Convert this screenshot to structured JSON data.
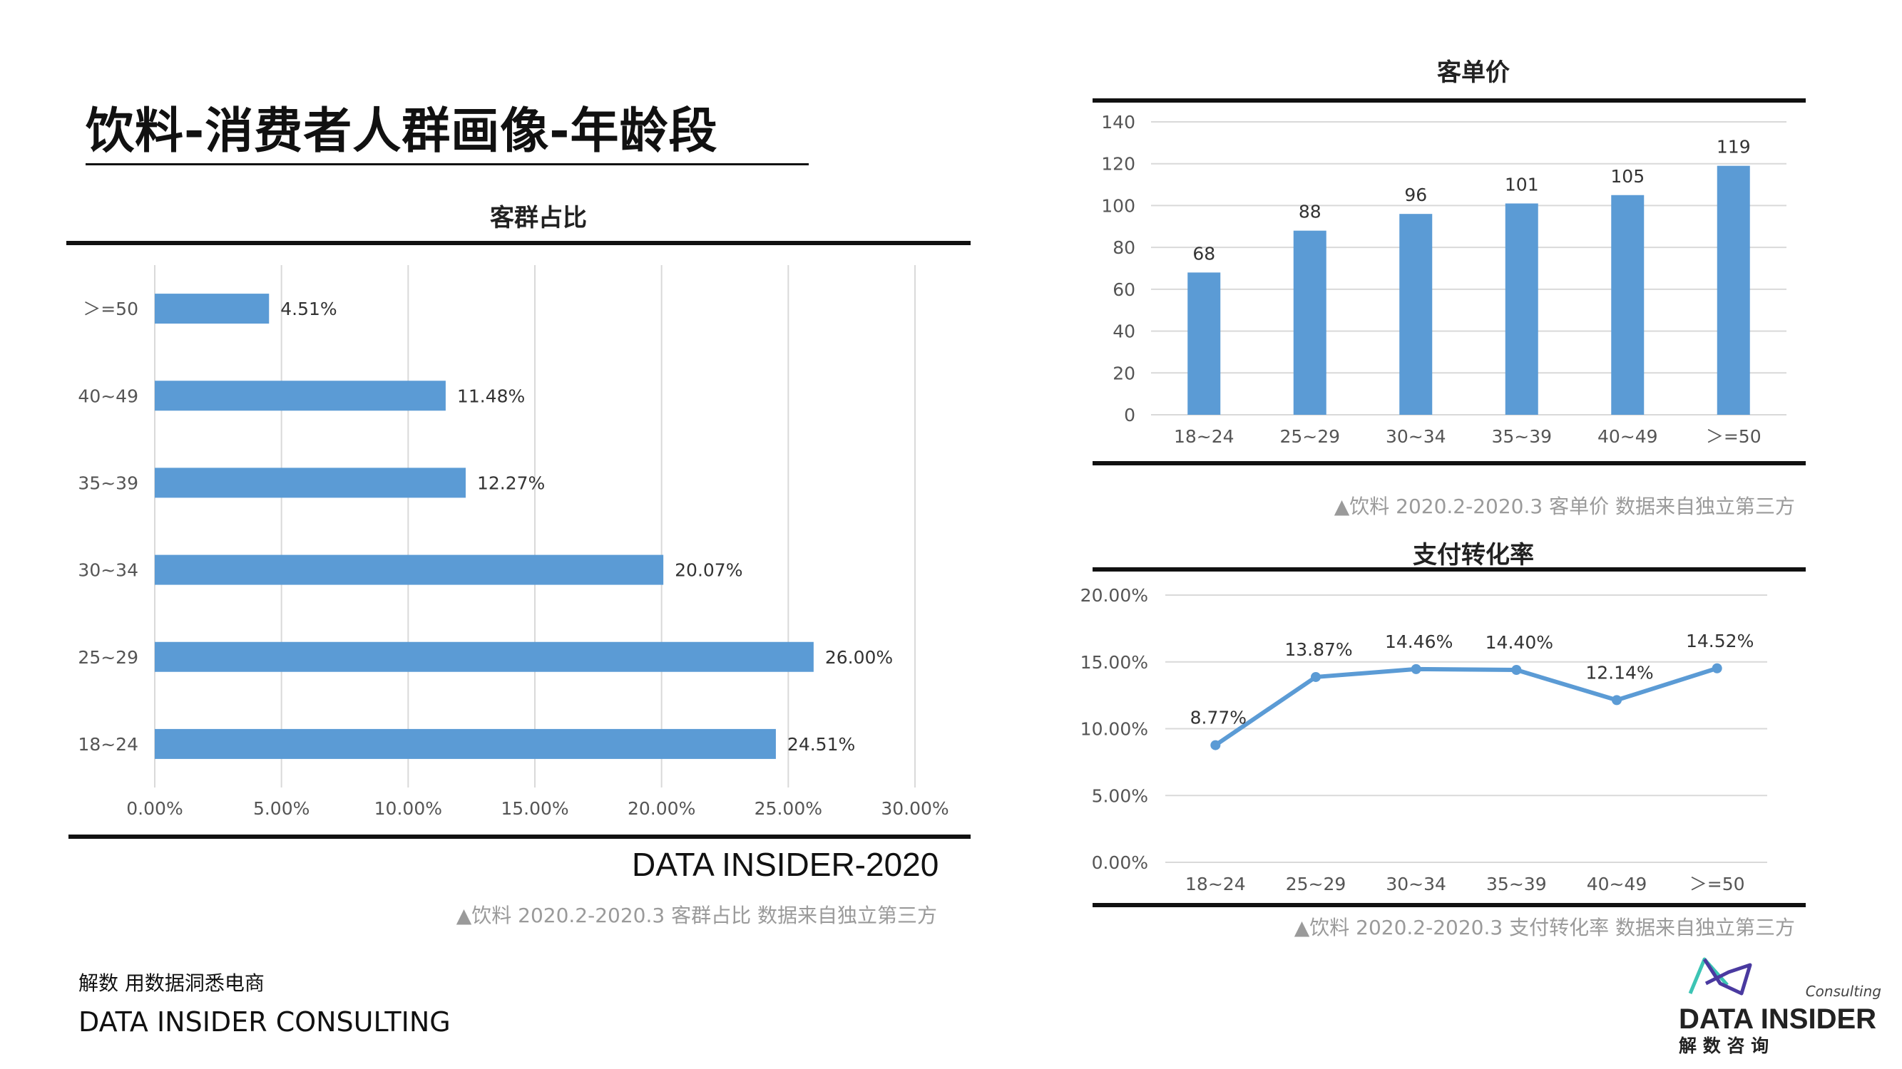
{
  "page": {
    "title": "饮料-消费者人群画像-年龄段",
    "source_brand": "DATA INSIDER-2020",
    "footer_cn": "解数 用数据洞悉电商",
    "footer_en": "DATA INSIDER CONSULTING"
  },
  "logo": {
    "consulting": "Consulting",
    "name": "DATA INSIDER",
    "cn": "解 数 咨 询",
    "colors": [
      "#3cc4b4",
      "#4a3aa0"
    ]
  },
  "colors": {
    "bar": "#5b9bd5",
    "line": "#5b9bd5",
    "grid": "#d9d9d9",
    "axis_text": "#555555"
  },
  "chart_data": [
    {
      "id": "customer_share",
      "type": "bar",
      "orientation": "horizontal",
      "title": "客群占比",
      "categories": [
        ">=50",
        "40~49",
        "35~39",
        "30~34",
        "25~29",
        "18~24"
      ],
      "category_labels": [
        "＞=50",
        "40~49",
        "35~39",
        "30~34",
        "25~29",
        "18~24"
      ],
      "values": [
        4.51,
        11.48,
        12.27,
        20.07,
        26.0,
        24.51
      ],
      "value_labels": [
        "4.51%",
        "11.48%",
        "12.27%",
        "20.07%",
        "26.00%",
        "24.51%"
      ],
      "xlim": [
        0,
        30
      ],
      "x_ticks": [
        "0.00%",
        "5.00%",
        "10.00%",
        "15.00%",
        "20.00%",
        "25.00%",
        "30.00%"
      ],
      "grid": true,
      "caption": "▲饮料  2020.2-2020.3 客群占比 数据来自独立第三方"
    },
    {
      "id": "unit_price",
      "type": "bar",
      "orientation": "vertical",
      "title": "客单价",
      "categories": [
        "18~24",
        "25~29",
        "30~34",
        "35~39",
        "40~49",
        ">=50"
      ],
      "category_labels": [
        "18~24",
        "25~29",
        "30~34",
        "35~39",
        "40~49",
        "＞=50"
      ],
      "values": [
        68,
        88,
        96,
        101,
        105,
        119
      ],
      "value_labels": [
        "68",
        "88",
        "96",
        "101",
        "105",
        "119"
      ],
      "ylim": [
        0,
        140
      ],
      "y_ticks": [
        "0",
        "20",
        "40",
        "60",
        "80",
        "100",
        "120",
        "140"
      ],
      "grid": true,
      "caption": "▲饮料 2020.2-2020.3 客单价 数据来自独立第三方"
    },
    {
      "id": "pay_conversion",
      "type": "line",
      "title": "支付转化率",
      "categories": [
        "18~24",
        "25~29",
        "30~34",
        "35~39",
        "40~49",
        ">=50"
      ],
      "category_labels": [
        "18~24",
        "25~29",
        "30~34",
        "35~39",
        "40~49",
        "＞=50"
      ],
      "values": [
        8.77,
        13.87,
        14.46,
        14.4,
        12.14,
        14.52
      ],
      "value_labels": [
        "8.77%",
        "13.87%",
        "14.46%",
        "14.40%",
        "12.14%",
        "14.52%"
      ],
      "ylim": [
        0,
        20
      ],
      "y_ticks": [
        "0.00%",
        "5.00%",
        "10.00%",
        "15.00%",
        "20.00%"
      ],
      "grid": true,
      "caption": "▲饮料 2020.2-2020.3 支付转化率 数据来自独立第三方"
    }
  ]
}
